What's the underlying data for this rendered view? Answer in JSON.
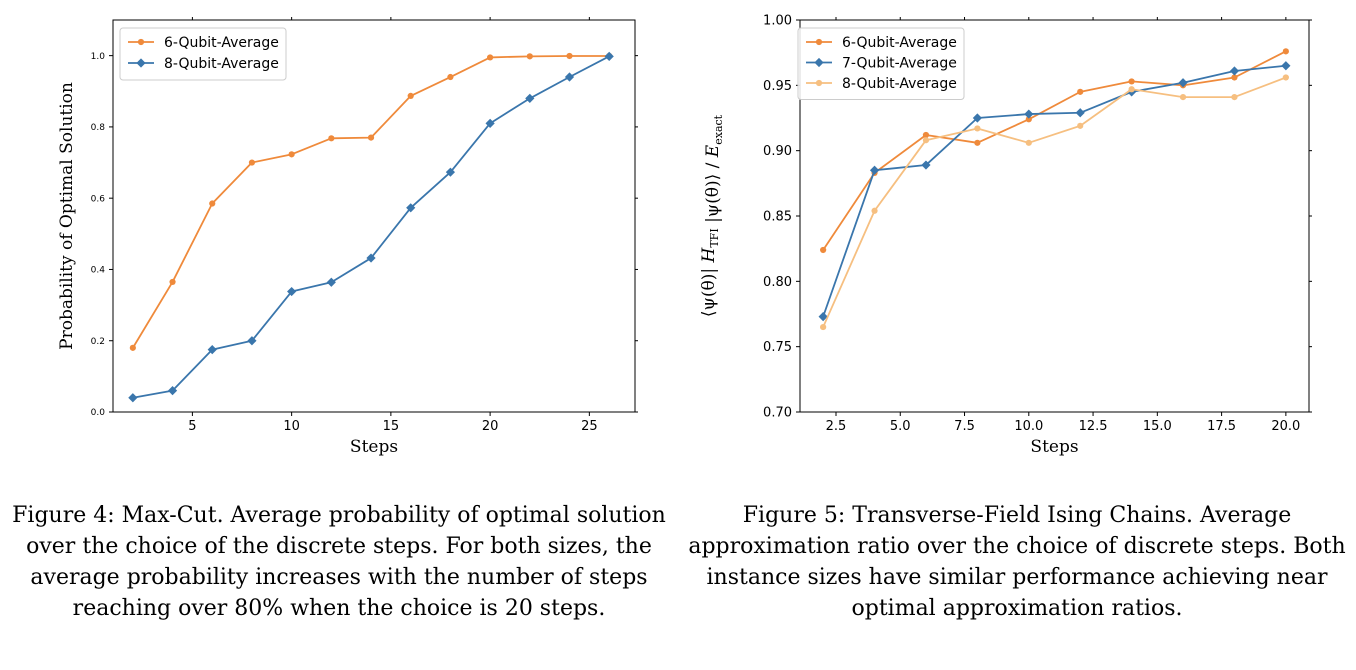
{
  "figures": [
    {
      "caption": "Figure 4: Max-Cut. Average probability of optimal solution over the choice of the discrete steps. For both sizes, the average probability increases with the number of steps reaching over 80% when the choice is 20 steps."
    },
    {
      "caption": "Figure 5: Transverse-Field Ising Chains. Average approximation ratio over the choice of discrete steps. Both instance sizes have similar performance achieving near optimal approximation ratios."
    }
  ],
  "chart_data": [
    {
      "type": "line",
      "xlabel": "Steps",
      "ylabel": "Probability of Optimal Solution",
      "xlim": [
        1,
        27.3
      ],
      "ylim": [
        0,
        1.1
      ],
      "xticks": [
        5,
        10,
        15,
        20,
        25
      ],
      "xtick_labels": [
        "5",
        "10",
        "15",
        "20",
        "25"
      ],
      "yticks": [
        0,
        0.2,
        0.4,
        0.6,
        0.8,
        1.0
      ],
      "ytick_labels": [
        "0.0",
        "0.2",
        "0.4",
        "0.6",
        "0.8",
        "1.0"
      ],
      "legend_position": "top-left",
      "grid": false,
      "series": [
        {
          "name": "6-Qubit-Average",
          "color": "#ef8a3b",
          "marker": "circle",
          "x": [
            2,
            4,
            6,
            8,
            10,
            12,
            14,
            16,
            18,
            20,
            22,
            24,
            26
          ],
          "y": [
            0.18,
            0.365,
            0.585,
            0.7,
            0.723,
            0.768,
            0.77,
            0.887,
            0.94,
            0.995,
            0.998,
            0.999,
            0.999
          ]
        },
        {
          "name": "8-Qubit-Average",
          "color": "#3a76ac",
          "marker": "diamond",
          "x": [
            2,
            4,
            6,
            8,
            10,
            12,
            14,
            16,
            18,
            20,
            22,
            24,
            26
          ],
          "y": [
            0.04,
            0.06,
            0.175,
            0.2,
            0.338,
            0.364,
            0.432,
            0.573,
            0.673,
            0.81,
            0.88,
            0.94,
            0.998
          ]
        }
      ]
    },
    {
      "type": "line",
      "xlabel": "Steps",
      "ylabel": "⟨ψ(θ)| H_TFI |ψ(θ)⟩ / E_exact",
      "xlim": [
        1.1,
        20.9
      ],
      "ylim": [
        0.7,
        1.0
      ],
      "xticks": [
        2.5,
        5.0,
        7.5,
        10.0,
        12.5,
        15.0,
        17.5,
        20.0
      ],
      "xtick_labels": [
        "2.5",
        "5.0",
        "7.5",
        "10.0",
        "12.5",
        "15.0",
        "17.5",
        "20.0"
      ],
      "yticks": [
        0.7,
        0.75,
        0.8,
        0.85,
        0.9,
        0.95,
        1.0
      ],
      "ytick_labels": [
        "0.70",
        "0.75",
        "0.80",
        "0.85",
        "0.90",
        "0.95",
        "1.00"
      ],
      "legend_position": "top-left",
      "grid": false,
      "series": [
        {
          "name": "6-Qubit-Average",
          "color": "#ef8a3b",
          "marker": "circle",
          "x": [
            2,
            4,
            6,
            8,
            10,
            12,
            14,
            16,
            18,
            20
          ],
          "y": [
            0.824,
            0.883,
            0.912,
            0.906,
            0.924,
            0.945,
            0.953,
            0.95,
            0.956,
            0.976
          ]
        },
        {
          "name": "7-Qubit-Average",
          "color": "#3a76ac",
          "marker": "diamond",
          "x": [
            2,
            4,
            6,
            8,
            10,
            12,
            14,
            16,
            18,
            20
          ],
          "y": [
            0.773,
            0.885,
            0.889,
            0.925,
            0.928,
            0.929,
            0.945,
            0.952,
            0.961,
            0.965
          ]
        },
        {
          "name": "8-Qubit-Average",
          "color": "#f6bf80",
          "marker": "circle",
          "x": [
            2,
            4,
            6,
            8,
            10,
            12,
            14,
            16,
            18,
            20
          ],
          "y": [
            0.765,
            0.854,
            0.908,
            0.917,
            0.906,
            0.919,
            0.947,
            0.941,
            0.941,
            0.956
          ]
        }
      ]
    }
  ]
}
